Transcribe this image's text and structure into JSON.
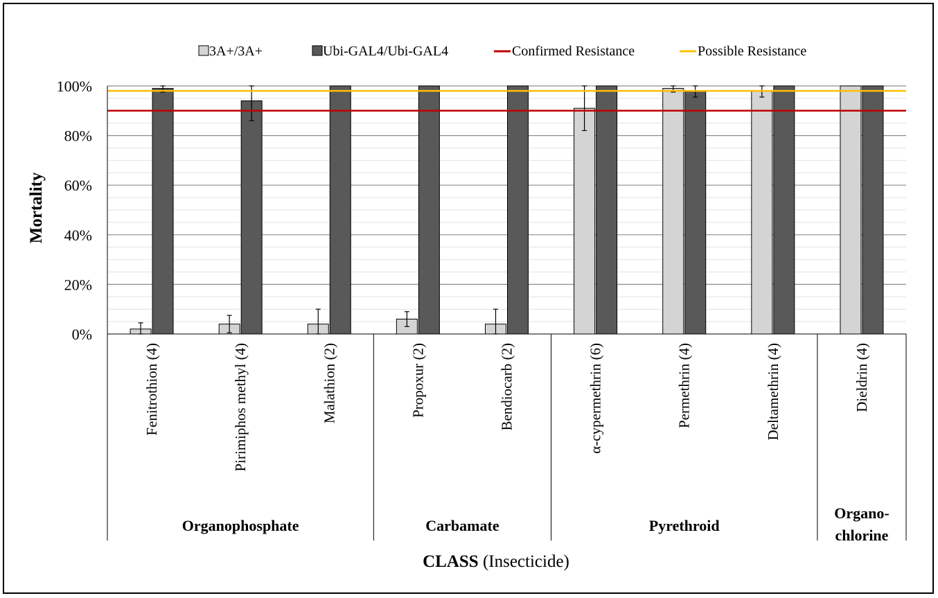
{
  "chart_data": {
    "type": "bar",
    "ylabel": "Mortality",
    "xlabel_bold": "CLASS",
    "xlabel_rest": " (Insecticide)",
    "ylim": [
      0,
      100
    ],
    "yticks": [
      "0%",
      "20%",
      "40%",
      "60%",
      "80%",
      "100%"
    ],
    "categories": [
      "Fenitrothion (4)",
      "Pirimiphos methyl (4)",
      "Malathion (2)",
      "Propoxur (2)",
      "Bendiocarb (2)",
      "α-cypermethrin (6)",
      "Permethrin (4)",
      "Deltamethrin (4)",
      "Dieldrin (4)"
    ],
    "groups": [
      {
        "label": "Organophosphate",
        "count": 3
      },
      {
        "label": "Carbamate",
        "count": 2
      },
      {
        "label": "Pyrethroid",
        "count": 3
      },
      {
        "label": "Organo-\nchlorine",
        "count": 1
      }
    ],
    "series": [
      {
        "name": "3A+/3A+",
        "color": "#d4d4d4",
        "values": [
          2,
          4,
          4,
          6,
          4,
          91,
          99,
          98,
          100
        ],
        "errors": [
          2.5,
          3.5,
          6,
          3,
          6,
          9,
          1.5,
          2.5,
          0
        ]
      },
      {
        "name": "Ubi-GAL4/Ubi-GAL4",
        "color": "#595959",
        "values": [
          99,
          94,
          100,
          100,
          100,
          100,
          98,
          100,
          100
        ],
        "errors": [
          1.5,
          8,
          0,
          0,
          0,
          0,
          2.5,
          0,
          0
        ]
      }
    ],
    "reference_lines": [
      {
        "name": "Confirmed Resistance",
        "value": 90,
        "color": "#c00000"
      },
      {
        "name": "Possible Resistance",
        "value": 98,
        "color": "#ffc000"
      }
    ],
    "legend_position": "top",
    "grid": true
  }
}
